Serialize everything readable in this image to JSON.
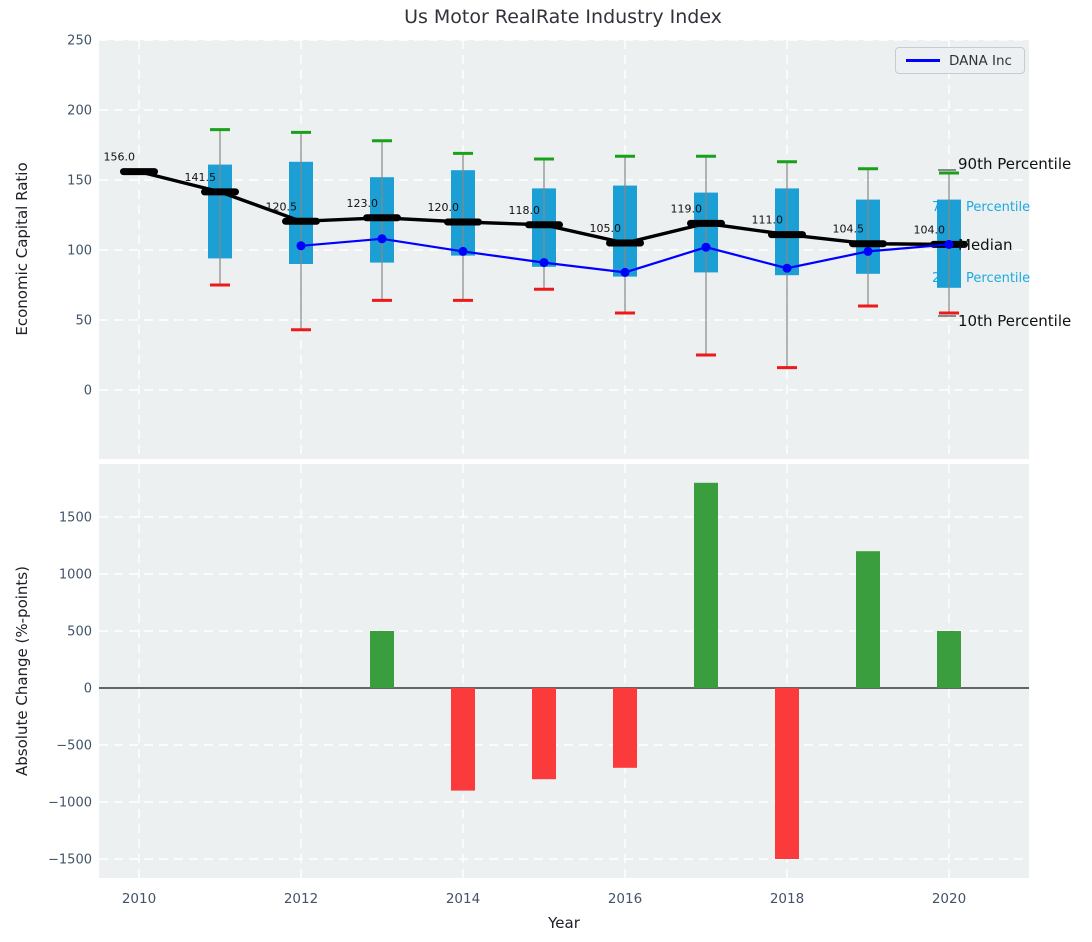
{
  "title": "Us Motor RealRate Industry Index",
  "legend": {
    "label": "DANA Inc",
    "line_color": "#0000ff"
  },
  "right_labels": [
    "90th Percentile",
    "75th Percentile",
    "Median",
    "25th Percentile",
    "10th Percentile"
  ],
  "axes": {
    "top": {
      "ylabel": "Economic Capital Ratio",
      "yticks": [
        250,
        200,
        150,
        100,
        50,
        0
      ]
    },
    "bottom": {
      "ylabel": "Absolute Change (%-points)",
      "xlabel": "Year",
      "yticks": [
        1500,
        1000,
        500,
        0,
        -500,
        -1000,
        -1500
      ],
      "xticks": [
        2010,
        2012,
        2014,
        2016,
        2018,
        2020
      ]
    }
  },
  "colors": {
    "plot_bg": "#ecf0f1",
    "grid": "#ffffff",
    "box": "#1b9fd4",
    "whisker": "#888888",
    "cap_top": "#1aa01a",
    "cap_bottom": "#ee1a1a",
    "median": "#000000",
    "dana_line": "#0000ff",
    "bar_positive": "#3a9e3f",
    "bar_negative": "#fb3b3b",
    "tick_label": "#425469",
    "annotation": "#111111",
    "percentile_black": "#111111",
    "percentile_cyan": "#1da9e0",
    "zero_line": "#111111"
  },
  "chart_data": [
    {
      "type": "boxplot",
      "title": "Us Motor RealRate Industry Index",
      "xlabel": "Year",
      "ylabel": "Economic Capital Ratio",
      "ylim": [
        -50,
        250
      ],
      "yticks": [
        250,
        200,
        150,
        100,
        50,
        0
      ],
      "grid": true,
      "legend_position": "upper right",
      "x": [
        2010,
        2011,
        2012,
        2013,
        2014,
        2015,
        2016,
        2017,
        2018,
        2019,
        2020
      ],
      "median": [
        156.0,
        141.5,
        120.5,
        123.0,
        120.0,
        118.0,
        105.0,
        119.0,
        111.0,
        104.5,
        104.0
      ],
      "q1": [
        null,
        94,
        90,
        91,
        96,
        88,
        81,
        84,
        82,
        83,
        73
      ],
      "q3": [
        null,
        161,
        163,
        152,
        157,
        144,
        146,
        141,
        144,
        136,
        136
      ],
      "p90": [
        null,
        186,
        184,
        178,
        169,
        165,
        167,
        167,
        163,
        158,
        155
      ],
      "p10": [
        null,
        75,
        43,
        64,
        64,
        72,
        55,
        25,
        16,
        60,
        55
      ],
      "median_labels": [
        "156.0",
        "141.5",
        "120.5",
        "123.0",
        "120.0",
        "118.0",
        "105.0",
        "119.0",
        "111.0",
        "104.5",
        "104.0"
      ],
      "series": [
        {
          "name": "DANA Inc",
          "x": [
            2012,
            2013,
            2014,
            2015,
            2016,
            2017,
            2018,
            2019,
            2020
          ],
          "values": [
            103,
            108,
            99,
            91,
            84,
            102,
            87,
            99,
            104
          ]
        }
      ]
    },
    {
      "type": "bar",
      "xlabel": "Year",
      "ylabel": "Absolute Change (%-points)",
      "ylim": [
        -1670,
        1970
      ],
      "yticks": [
        1500,
        1000,
        500,
        0,
        -500,
        -1000,
        -1500
      ],
      "xticks": [
        2010,
        2012,
        2014,
        2016,
        2018,
        2020
      ],
      "grid": true,
      "x": [
        2013,
        2014,
        2015,
        2016,
        2017,
        2018,
        2019,
        2020
      ],
      "values": [
        500,
        -900,
        -800,
        -700,
        1800,
        -1500,
        1200,
        500
      ]
    }
  ]
}
